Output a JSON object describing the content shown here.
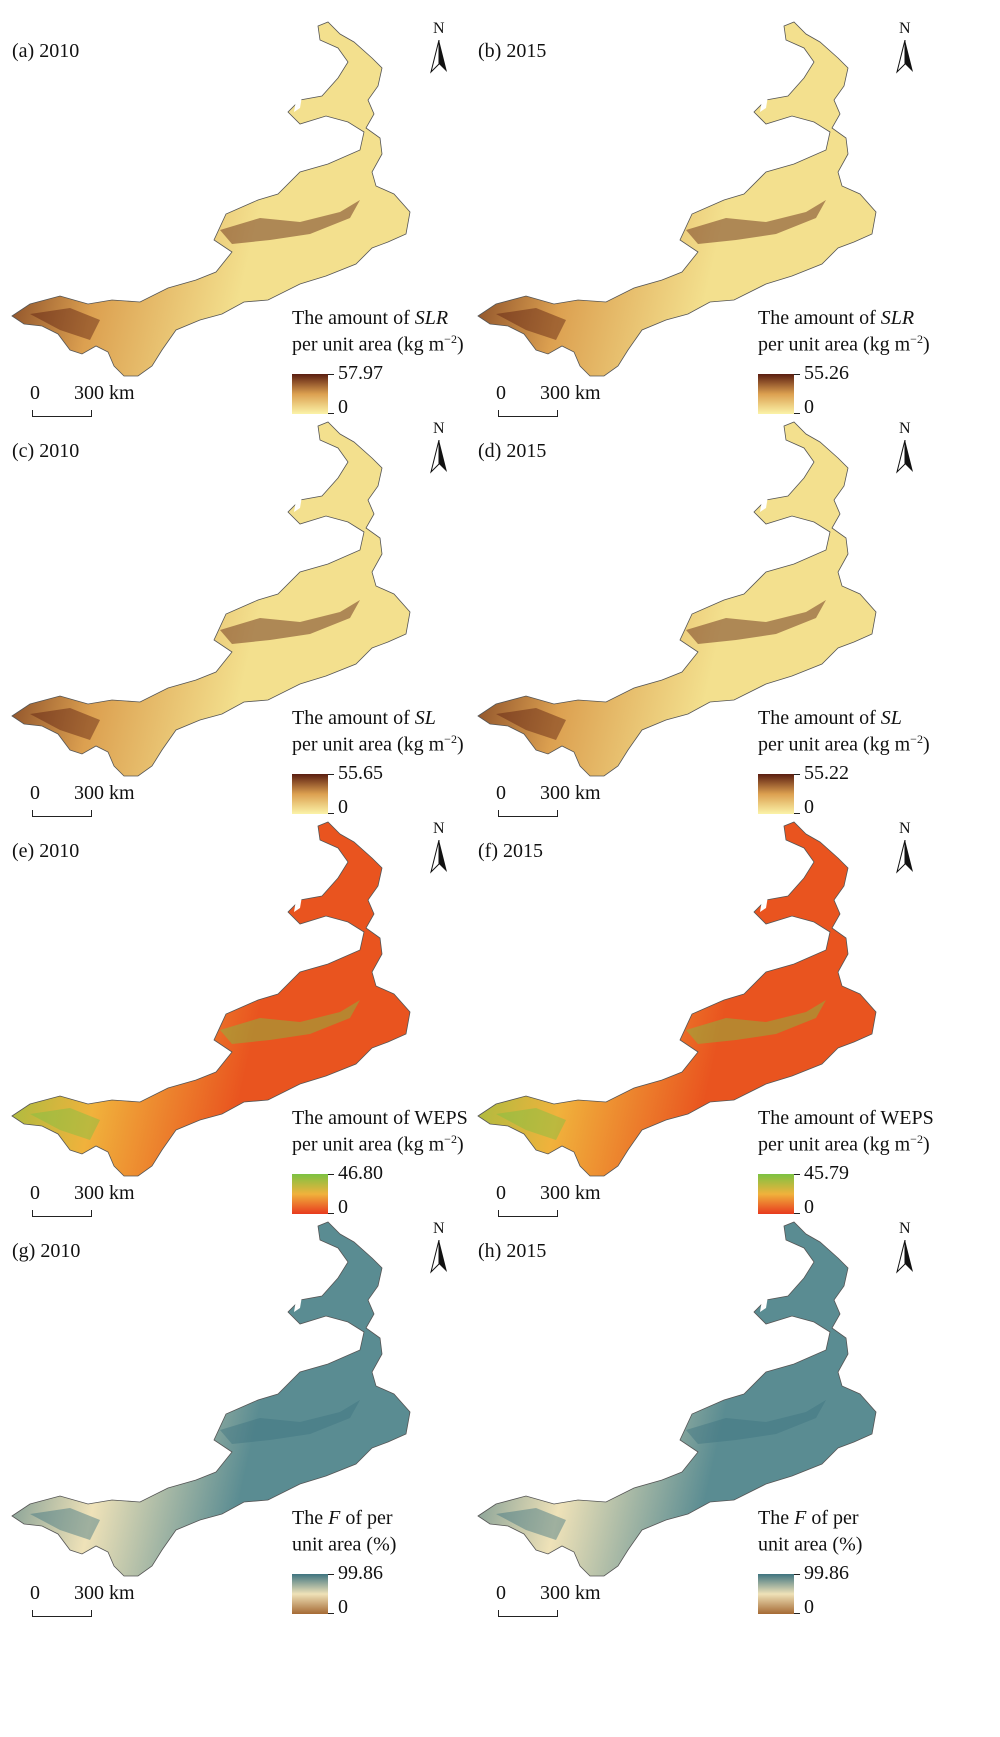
{
  "panels": [
    {
      "label": "(a) 2010",
      "north": "N",
      "legend": {
        "title_line1": "The amount of ",
        "title_var": "SLR",
        "title_line1_end": "",
        "title_line2": "per unit area (kg m",
        "title_sup": "−2",
        "title_line2_end": ")",
        "max": "57.97",
        "min": "0",
        "palette": "brown"
      },
      "scale": {
        "zero": "0",
        "distance": "300 km"
      }
    },
    {
      "label": "(b) 2015",
      "north": "N",
      "legend": {
        "title_line1": "The amount of ",
        "title_var": "SLR",
        "title_line1_end": "",
        "title_line2": "per unit area (kg m",
        "title_sup": "−2",
        "title_line2_end": ")",
        "max": "55.26",
        "min": "0",
        "palette": "brown"
      },
      "scale": {
        "zero": "0",
        "distance": "300 km"
      }
    },
    {
      "label": "(c) 2010",
      "north": "N",
      "legend": {
        "title_line1": "The amount of ",
        "title_var": "SL",
        "title_line1_end": "",
        "title_line2": "per unit area (kg m",
        "title_sup": "−2",
        "title_line2_end": ")",
        "max": "55.65",
        "min": "0",
        "palette": "brown"
      },
      "scale": {
        "zero": "0",
        "distance": "300 km"
      }
    },
    {
      "label": "(d) 2015",
      "north": "N",
      "legend": {
        "title_line1": "The amount of ",
        "title_var": "SL",
        "title_line1_end": "",
        "title_line2": "per unit area (kg m",
        "title_sup": "−2",
        "title_line2_end": ")",
        "max": "55.22",
        "min": "0",
        "palette": "brown"
      },
      "scale": {
        "zero": "0",
        "distance": "300 km"
      }
    },
    {
      "label": "(e) 2010",
      "north": "N",
      "legend": {
        "title_line1": "The amount of WEPS",
        "title_var": "",
        "title_line1_end": "",
        "title_line2": "per unit area (kg m",
        "title_sup": "−2",
        "title_line2_end": ")",
        "max": "46.80",
        "min": "0",
        "palette": "redgreen"
      },
      "scale": {
        "zero": "0",
        "distance": "300 km"
      }
    },
    {
      "label": "(f) 2015",
      "north": "N",
      "legend": {
        "title_line1": "The amount of WEPS",
        "title_var": "",
        "title_line1_end": "",
        "title_line2": "per unit area (kg m",
        "title_sup": "−2",
        "title_line2_end": ")",
        "max": "45.79",
        "min": "0",
        "palette": "redgreen"
      },
      "scale": {
        "zero": "0",
        "distance": "300 km"
      }
    },
    {
      "label": "(g) 2010",
      "north": "N",
      "legend": {
        "title_line1": "The ",
        "title_var": "F",
        "title_line1_end": " of per",
        "title_line2": "unit area (%)",
        "title_sup": "",
        "title_line2_end": "",
        "max": "99.86",
        "min": "0",
        "palette": "tealbrown"
      },
      "scale": {
        "zero": "0",
        "distance": "300 km"
      }
    },
    {
      "label": "(h) 2015",
      "north": "N",
      "legend": {
        "title_line1": "The ",
        "title_var": "F",
        "title_line1_end": " of per",
        "title_line2": "unit area (%)",
        "title_sup": "",
        "title_line2_end": "",
        "max": "99.86",
        "min": "0",
        "palette": "tealbrown"
      },
      "scale": {
        "zero": "0",
        "distance": "300 km"
      }
    }
  ],
  "palettes": {
    "brown": {
      "low": "#fbf3a8",
      "mid": "#dca050",
      "high": "#5a1d10",
      "base": "#f3e08e"
    },
    "redgreen": {
      "low": "#e83a1e",
      "mid": "#f0b23c",
      "high": "#7cc242",
      "base": "#e9541f"
    },
    "tealbrown": {
      "low": "#a56a34",
      "mid": "#efe2b8",
      "high": "#3f7480",
      "base": "#5a8c92"
    }
  }
}
